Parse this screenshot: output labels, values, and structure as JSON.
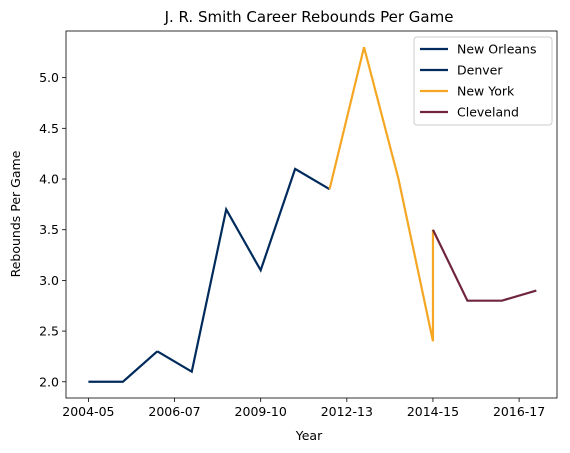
{
  "chart_data": {
    "type": "line",
    "title": "J. R. Smith Career Rebounds Per Game",
    "xlabel": "Year",
    "ylabel": "Rebounds Per Game",
    "x_ticks": [
      {
        "x": 0,
        "label": "2004-05"
      },
      {
        "x": 2.5,
        "label": "2006-07"
      },
      {
        "x": 5,
        "label": "2009-10"
      },
      {
        "x": 7.5,
        "label": "2012-13"
      },
      {
        "x": 10,
        "label": "2014-15"
      },
      {
        "x": 12.5,
        "label": "2016-17"
      }
    ],
    "y_ticks": [
      2.0,
      2.5,
      3.0,
      3.5,
      4.0,
      4.5,
      5.0
    ],
    "y_tick_labels": [
      "2.0",
      "2.5",
      "3.0",
      "3.5",
      "4.0",
      "4.5",
      "5.0"
    ],
    "xlim": [
      -0.65,
      13.6
    ],
    "ylim": [
      1.84,
      5.46
    ],
    "grid": false,
    "legend_position": "top-right",
    "series": [
      {
        "name": "New Orleans",
        "color": "#002B5C",
        "x": [
          0,
          1,
          2
        ],
        "y": [
          2.0,
          2.0,
          2.3
        ]
      },
      {
        "name": "Denver",
        "color": "#002B5C",
        "x": [
          2,
          3,
          4,
          5,
          6,
          7
        ],
        "y": [
          2.3,
          2.1,
          3.7,
          3.1,
          4.1,
          3.9
        ]
      },
      {
        "name": "New York",
        "color": "#F5A623",
        "x": [
          7,
          8,
          9,
          10,
          10
        ],
        "y": [
          3.9,
          5.3,
          4.0,
          2.4,
          3.5
        ]
      },
      {
        "name": "Cleveland",
        "color": "#6F263D",
        "x": [
          10,
          11,
          12,
          13
        ],
        "y": [
          3.5,
          2.8,
          2.8,
          2.9
        ]
      }
    ]
  }
}
